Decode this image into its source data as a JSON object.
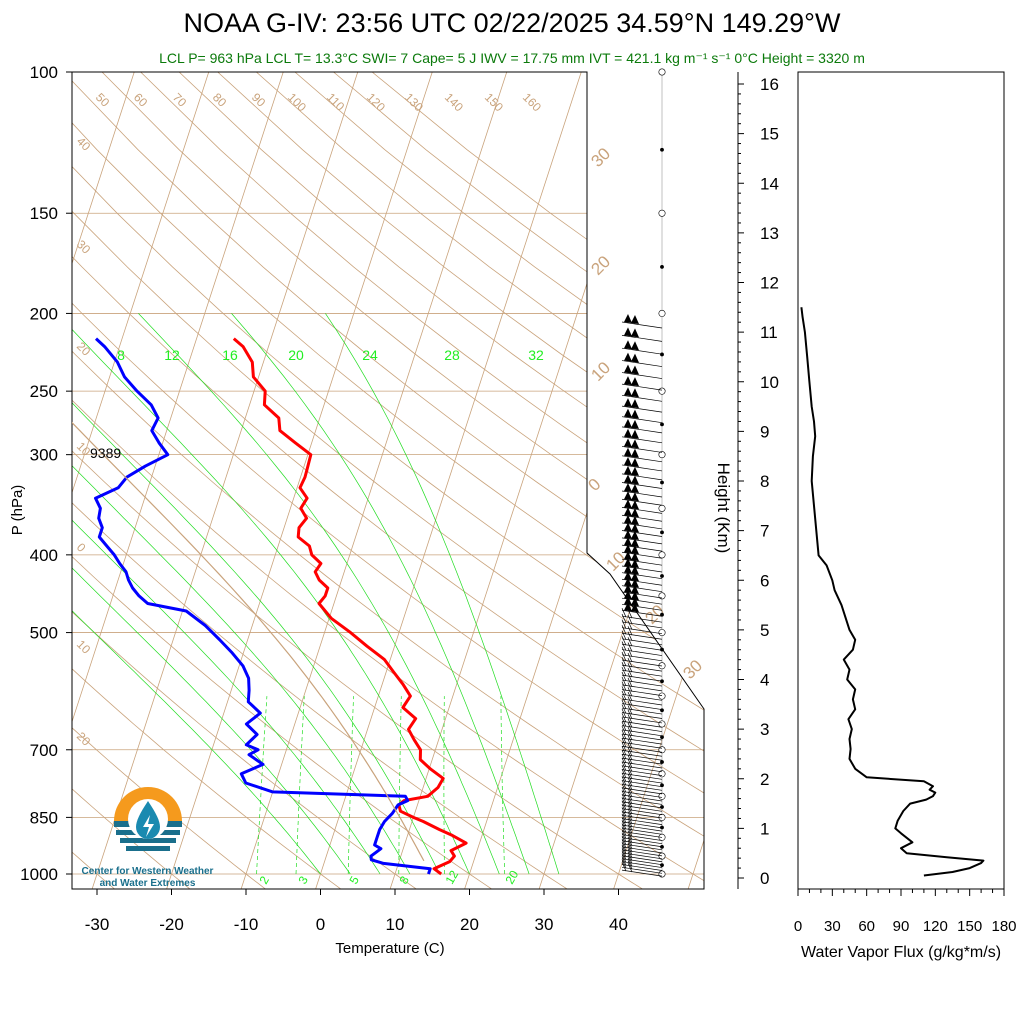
{
  "title": "NOAA G-IV: 23:56 UTC 02/22/2025  34.59°N 149.29°W",
  "subtitle": "LCL P= 963 hPa  LCL T= 13.3°C  SWI= 7  Cape= 5 J  IWV = 17.75 mm  IVT = 421.1 kg m⁻¹ s⁻¹  0°C Height = 3320 m",
  "station_id": "9389",
  "logo": {
    "line1": "Center for Western Weather",
    "line2": "and Water Extremes"
  },
  "colors": {
    "temperature": "#ff0000",
    "dewpoint": "#0000ff",
    "isotherm": "#c9a37c",
    "mixing_ratio": "#22dd22",
    "label_green": "#0b7a0b"
  },
  "chart_data": [
    {
      "type": "line",
      "subtype": "skew-T log-P",
      "xlabel": "Temperature (C)",
      "ylabel": "P (hPa)",
      "xlim": [
        -34,
        52
      ],
      "ylim": [
        1000,
        100
      ],
      "yscale": "log",
      "xticks": [
        -30,
        -20,
        -10,
        0,
        10,
        20,
        30,
        40
      ],
      "yticks": [
        100,
        150,
        200,
        250,
        300,
        400,
        500,
        700,
        850,
        1000
      ],
      "isotherm_labels": [
        "-30",
        "-20",
        "-10",
        "0",
        "10",
        "20",
        "30"
      ],
      "dry_adiabat_labels": [
        "50",
        "60",
        "70",
        "80",
        "90",
        "100",
        "110",
        "120",
        "130",
        "140",
        "150",
        "160",
        "40",
        "30",
        "20",
        "10",
        "0",
        "10",
        "20"
      ],
      "moist_adiabat_labels": [
        "8",
        "12",
        "16",
        "20",
        "24",
        "28",
        "32"
      ],
      "mixing_ratio_labels": [
        "2",
        "3",
        "5",
        "8",
        "12",
        "20"
      ],
      "series": [
        {
          "name": "Temperature",
          "p": [
            1000,
            985,
            965,
            950,
            935,
            915,
            895,
            880,
            860,
            850,
            835,
            820,
            810,
            800,
            780,
            760,
            740,
            720,
            700,
            680,
            660,
            640,
            620,
            600,
            580,
            560,
            540,
            520,
            500,
            480,
            460,
            450,
            440,
            430,
            420,
            410,
            400,
            390,
            380,
            370,
            360,
            350,
            340,
            330,
            320,
            310,
            300,
            290,
            280,
            270,
            260,
            250,
            240,
            230,
            220,
            215
          ],
          "t": [
            16.2,
            15.0,
            16.8,
            17.2,
            16.5,
            18.2,
            16.0,
            14.0,
            11.5,
            10.0,
            8.0,
            7.5,
            8.0,
            11.0,
            12.0,
            12.3,
            10.2,
            8.4,
            8.0,
            6.7,
            5.5,
            6.0,
            3.8,
            4.3,
            2.8,
            1.0,
            -0.8,
            -3.7,
            -6.5,
            -9.7,
            -12.0,
            -11.5,
            -11.5,
            -13.0,
            -13.9,
            -13.5,
            -15.1,
            -15.8,
            -17.7,
            -18.0,
            -17.4,
            -18.6,
            -18.2,
            -19.6,
            -19.4,
            -19.5,
            -19.6,
            -22.2,
            -24.8,
            -25.5,
            -28.0,
            -28.5,
            -30.7,
            -31.5,
            -33.4,
            -35.0
          ]
        },
        {
          "name": "Dewpoint",
          "p": [
            1000,
            985,
            970,
            960,
            950,
            940,
            930,
            920,
            900,
            880,
            860,
            840,
            820,
            810,
            800,
            790,
            770,
            750,
            730,
            710,
            700,
            690,
            670,
            650,
            630,
            610,
            590,
            570,
            550,
            530,
            510,
            490,
            470,
            460,
            450,
            440,
            430,
            420,
            410,
            400,
            390,
            380,
            370,
            360,
            350,
            340,
            330,
            320,
            310,
            300,
            290,
            280,
            270,
            260,
            250,
            240,
            230,
            220,
            215
          ],
          "t": [
            14.5,
            14.5,
            8.0,
            6.2,
            6.0,
            6.5,
            7.0,
            6.0,
            6.0,
            6.0,
            6.3,
            7.0,
            7.4,
            8.5,
            8.0,
            -10.0,
            -14.0,
            -15.0,
            -12.5,
            -14.8,
            -13.8,
            -15.6,
            -14.6,
            -16.5,
            -15.1,
            -17.2,
            -17.6,
            -18.2,
            -19.5,
            -21.5,
            -23.8,
            -26.3,
            -29.5,
            -35.0,
            -36.5,
            -37.7,
            -38.6,
            -39.3,
            -40.5,
            -41.6,
            -43.0,
            -44.4,
            -44.4,
            -45.3,
            -45.5,
            -46.6,
            -44.0,
            -43.3,
            -41.3,
            -38.8,
            -40.5,
            -42.0,
            -41.7,
            -43.2,
            -45.7,
            -48.0,
            -49.6,
            -52.0,
            -53.5
          ]
        }
      ]
    },
    {
      "type": "line",
      "xlabel": "Water Vapor Flux (g/kg*m/s)",
      "ylabel": "Height (Km)",
      "xlim": [
        0,
        180
      ],
      "ylim": [
        0,
        16.4
      ],
      "xticks": [
        0,
        30,
        60,
        90,
        120,
        150,
        180
      ],
      "yticks": [
        0,
        1,
        2,
        3,
        4,
        5,
        6,
        7,
        8,
        9,
        10,
        11,
        12,
        13,
        14,
        15,
        16
      ],
      "series": [
        {
          "name": "Water Vapor Flux",
          "x": [
            110,
            135,
            150,
            160,
            162,
            130,
            95,
            90,
            100,
            90,
            85,
            87,
            92,
            98,
            112,
            118,
            120,
            115,
            118,
            110,
            60,
            50,
            45,
            46,
            45,
            47,
            44,
            50,
            48,
            50,
            43,
            45,
            40,
            48,
            50,
            45,
            38,
            32,
            30,
            25,
            18,
            16,
            14,
            12,
            13,
            15,
            14,
            12,
            10,
            8,
            6,
            4,
            3
          ],
          "y": [
            0.05,
            0.12,
            0.2,
            0.3,
            0.35,
            0.42,
            0.5,
            0.6,
            0.72,
            0.9,
            1.0,
            1.15,
            1.35,
            1.5,
            1.58,
            1.65,
            1.72,
            1.78,
            1.85,
            1.95,
            2.03,
            2.2,
            2.4,
            2.6,
            2.8,
            3.0,
            3.2,
            3.4,
            3.6,
            3.8,
            4.0,
            4.2,
            4.4,
            4.6,
            4.8,
            5.0,
            5.5,
            5.8,
            6.0,
            6.3,
            6.5,
            7.0,
            7.5,
            8.0,
            8.5,
            8.9,
            9.2,
            9.5,
            10.0,
            10.5,
            11.0,
            11.3,
            11.5
          ]
        }
      ]
    }
  ]
}
